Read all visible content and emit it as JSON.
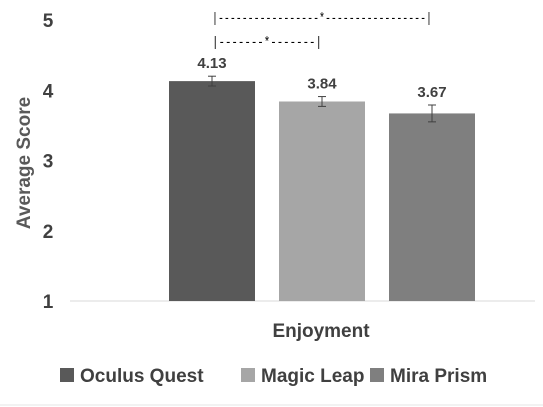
{
  "chart_data": {
    "type": "bar",
    "ylabel": "Average Score",
    "xlabel": "Enjoyment",
    "categories": [
      "Enjoyment"
    ],
    "ylim": [
      1,
      5
    ],
    "yticks": [
      "1",
      "2",
      "3",
      "4",
      "5"
    ],
    "grid": false,
    "legend_position": "bottom",
    "series": [
      {
        "name": "Oculus Quest",
        "values": [
          4.13
        ],
        "error": [
          0.07
        ],
        "label": "4.13",
        "color": "#595959"
      },
      {
        "name": "Magic Leap",
        "values": [
          3.84
        ],
        "error": [
          0.07
        ],
        "label": "3.84",
        "color": "#a6a6a6"
      },
      {
        "name": "Mira Prism",
        "values": [
          3.67
        ],
        "error": [
          0.12
        ],
        "label": "3.67",
        "color": "#7f7f7f"
      }
    ],
    "annotations": [
      {
        "text": "|-----------------*-----------------|",
        "from_series": 0,
        "to_series": 2
      },
      {
        "text": "|-------*-------|",
        "from_series": 0,
        "to_series": 1
      }
    ]
  }
}
